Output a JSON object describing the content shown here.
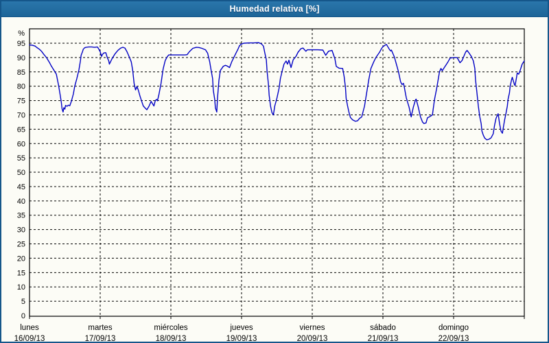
{
  "window": {
    "title": "Humedad relativa [%]"
  },
  "colors": {
    "titlebar": "#1d6598",
    "window_border": "#15568a",
    "background": "#fcfcf6",
    "line": "#0000c4",
    "grid": "#000000",
    "text": "#000000"
  },
  "chart_data": {
    "type": "line",
    "title": "Humedad relativa [%]",
    "ylabel_unit": "%",
    "ylim": [
      0,
      100
    ],
    "ytick_step": 5,
    "yticks": [
      95,
      90,
      85,
      80,
      75,
      70,
      65,
      60,
      55,
      50,
      45,
      40,
      35,
      30,
      25,
      20,
      15,
      10,
      5,
      0
    ],
    "grid": "dashed",
    "legend_position": "none",
    "x_axis": {
      "span_days": 7,
      "days": [
        {
          "name": "lunes",
          "date": "16/09/13"
        },
        {
          "name": "martes",
          "date": "17/09/13"
        },
        {
          "name": "miércoles",
          "date": "18/09/13"
        },
        {
          "name": "jueves",
          "date": "19/09/13"
        },
        {
          "name": "viernes",
          "date": "20/09/13"
        },
        {
          "name": "sábado",
          "date": "21/09/13"
        },
        {
          "name": "domingo",
          "date": "22/09/13"
        }
      ]
    },
    "series": [
      {
        "name": "Humedad relativa [%]",
        "color": "#0000c4",
        "points": [
          [
            0.0,
            94.4
          ],
          [
            0.04,
            94.3
          ],
          [
            0.08,
            94.0
          ],
          [
            0.1,
            93.6
          ],
          [
            0.14,
            92.9
          ],
          [
            0.17,
            92.2
          ],
          [
            0.2,
            91.2
          ],
          [
            0.24,
            90.0
          ],
          [
            0.28,
            88.4
          ],
          [
            0.31,
            87.0
          ],
          [
            0.34,
            85.8
          ],
          [
            0.38,
            84.2
          ],
          [
            0.41,
            80.5
          ],
          [
            0.43,
            77.5
          ],
          [
            0.45,
            74.5
          ],
          [
            0.46,
            72.2
          ],
          [
            0.475,
            71.0
          ],
          [
            0.485,
            72.5
          ],
          [
            0.5,
            72.0
          ],
          [
            0.51,
            73.3
          ],
          [
            0.53,
            73.0
          ],
          [
            0.55,
            73.4
          ],
          [
            0.57,
            73.2
          ],
          [
            0.59,
            74.6
          ],
          [
            0.62,
            77.3
          ],
          [
            0.64,
            80.0
          ],
          [
            0.67,
            82.7
          ],
          [
            0.7,
            85.8
          ],
          [
            0.72,
            88.9
          ],
          [
            0.73,
            90.8
          ],
          [
            0.75,
            92.1
          ],
          [
            0.76,
            92.9
          ],
          [
            0.78,
            93.4
          ],
          [
            0.8,
            93.6
          ],
          [
            0.84,
            93.7
          ],
          [
            0.88,
            93.7
          ],
          [
            0.92,
            93.6
          ],
          [
            0.96,
            93.7
          ],
          [
            0.98,
            93.0
          ],
          [
            1.0,
            92.0
          ],
          [
            1.02,
            90.4
          ],
          [
            1.03,
            91.0
          ],
          [
            1.05,
            91.6
          ],
          [
            1.08,
            91.7
          ],
          [
            1.1,
            90.0
          ],
          [
            1.12,
            88.9
          ],
          [
            1.13,
            87.7
          ],
          [
            1.17,
            89.7
          ],
          [
            1.21,
            91.3
          ],
          [
            1.25,
            92.5
          ],
          [
            1.29,
            93.3
          ],
          [
            1.32,
            93.6
          ],
          [
            1.35,
            93.3
          ],
          [
            1.38,
            92.0
          ],
          [
            1.41,
            90.3
          ],
          [
            1.44,
            88.5
          ],
          [
            1.46,
            85.5
          ],
          [
            1.48,
            81.0
          ],
          [
            1.5,
            78.7
          ],
          [
            1.52,
            79.9
          ],
          [
            1.54,
            78.6
          ],
          [
            1.56,
            76.8
          ],
          [
            1.59,
            74.5
          ],
          [
            1.61,
            73.1
          ],
          [
            1.64,
            72.3
          ],
          [
            1.66,
            71.8
          ],
          [
            1.69,
            73.0
          ],
          [
            1.72,
            74.7
          ],
          [
            1.76,
            73.1
          ],
          [
            1.78,
            75.0
          ],
          [
            1.8,
            75.4
          ],
          [
            1.81,
            74.9
          ],
          [
            1.83,
            77.0
          ],
          [
            1.86,
            80.9
          ],
          [
            1.89,
            86.0
          ],
          [
            1.92,
            89.0
          ],
          [
            1.95,
            90.3
          ],
          [
            1.97,
            90.9
          ],
          [
            2.05,
            90.9
          ],
          [
            2.12,
            90.9
          ],
          [
            2.2,
            90.9
          ],
          [
            2.23,
            91.0
          ],
          [
            2.26,
            92.0
          ],
          [
            2.31,
            93.2
          ],
          [
            2.36,
            93.6
          ],
          [
            2.4,
            93.5
          ],
          [
            2.44,
            93.2
          ],
          [
            2.49,
            92.7
          ],
          [
            2.52,
            91.5
          ],
          [
            2.55,
            88.5
          ],
          [
            2.57,
            85.5
          ],
          [
            2.59,
            82.7
          ],
          [
            2.6,
            78.6
          ],
          [
            2.62,
            75.4
          ],
          [
            2.63,
            72.4
          ],
          [
            2.65,
            71.0
          ],
          [
            2.66,
            76.0
          ],
          [
            2.68,
            82.0
          ],
          [
            2.7,
            85.5
          ],
          [
            2.72,
            86.2
          ],
          [
            2.74,
            86.9
          ],
          [
            2.77,
            87.3
          ],
          [
            2.8,
            87.0
          ],
          [
            2.83,
            86.5
          ],
          [
            2.86,
            88.5
          ],
          [
            2.89,
            90.0
          ],
          [
            2.92,
            91.5
          ],
          [
            2.95,
            93.0
          ],
          [
            2.97,
            94.1
          ],
          [
            2.99,
            94.6
          ],
          [
            3.03,
            95.0
          ],
          [
            3.1,
            95.1
          ],
          [
            3.17,
            95.1
          ],
          [
            3.24,
            95.2
          ],
          [
            3.28,
            94.8
          ],
          [
            3.31,
            94.0
          ],
          [
            3.33,
            91.5
          ],
          [
            3.35,
            89.2
          ],
          [
            3.36,
            85.4
          ],
          [
            3.38,
            80.8
          ],
          [
            3.39,
            76.9
          ],
          [
            3.41,
            73.1
          ],
          [
            3.43,
            70.8
          ],
          [
            3.45,
            70.0
          ],
          [
            3.47,
            73.1
          ],
          [
            3.5,
            75.8
          ],
          [
            3.53,
            79.2
          ],
          [
            3.55,
            82.7
          ],
          [
            3.58,
            85.8
          ],
          [
            3.6,
            87.7
          ],
          [
            3.63,
            88.8
          ],
          [
            3.65,
            87.7
          ],
          [
            3.67,
            89.1
          ],
          [
            3.7,
            86.5
          ],
          [
            3.73,
            89.2
          ],
          [
            3.77,
            90.4
          ],
          [
            3.8,
            91.9
          ],
          [
            3.84,
            93.1
          ],
          [
            3.87,
            93.3
          ],
          [
            3.91,
            92.2
          ],
          [
            3.93,
            92.7
          ],
          [
            3.97,
            92.7
          ],
          [
            4.02,
            92.7
          ],
          [
            4.08,
            92.7
          ],
          [
            4.15,
            92.6
          ],
          [
            4.19,
            90.8
          ],
          [
            4.23,
            92.2
          ],
          [
            4.26,
            92.4
          ],
          [
            4.28,
            92.5
          ],
          [
            4.32,
            89.6
          ],
          [
            4.34,
            86.9
          ],
          [
            4.38,
            86.3
          ],
          [
            4.43,
            86.2
          ],
          [
            4.45,
            83.5
          ],
          [
            4.47,
            79.6
          ],
          [
            4.48,
            75.8
          ],
          [
            4.5,
            73.1
          ],
          [
            4.52,
            70.8
          ],
          [
            4.54,
            69.1
          ],
          [
            4.57,
            68.3
          ],
          [
            4.61,
            67.8
          ],
          [
            4.64,
            67.9
          ],
          [
            4.67,
            68.8
          ],
          [
            4.7,
            69.3
          ],
          [
            4.74,
            73.1
          ],
          [
            4.77,
            77.7
          ],
          [
            4.8,
            82.3
          ],
          [
            4.83,
            86.2
          ],
          [
            4.87,
            88.5
          ],
          [
            4.9,
            90.0
          ],
          [
            4.95,
            91.8
          ],
          [
            4.98,
            93.1
          ],
          [
            5.0,
            93.8
          ],
          [
            5.03,
            94.3
          ],
          [
            5.05,
            94.6
          ],
          [
            5.09,
            92.9
          ],
          [
            5.11,
            92.3
          ],
          [
            5.12,
            92.6
          ],
          [
            5.16,
            90.3
          ],
          [
            5.19,
            87.7
          ],
          [
            5.22,
            85.0
          ],
          [
            5.25,
            81.5
          ],
          [
            5.27,
            80.6
          ],
          [
            5.29,
            81.0
          ],
          [
            5.3,
            80.0
          ],
          [
            5.33,
            76.0
          ],
          [
            5.37,
            72.7
          ],
          [
            5.39,
            70.4
          ],
          [
            5.4,
            69.3
          ],
          [
            5.43,
            72.7
          ],
          [
            5.46,
            75.2
          ],
          [
            5.47,
            75.5
          ],
          [
            5.5,
            72.7
          ],
          [
            5.53,
            69.4
          ],
          [
            5.56,
            67.5
          ],
          [
            5.58,
            67.0
          ],
          [
            5.61,
            67.2
          ],
          [
            5.63,
            69.0
          ],
          [
            5.67,
            69.5
          ],
          [
            5.7,
            70.0
          ],
          [
            5.73,
            75.4
          ],
          [
            5.76,
            79.2
          ],
          [
            5.78,
            82.0
          ],
          [
            5.8,
            85.0
          ],
          [
            5.82,
            86.2
          ],
          [
            5.84,
            85.4
          ],
          [
            5.86,
            86.2
          ],
          [
            5.9,
            87.7
          ],
          [
            5.92,
            88.5
          ],
          [
            5.95,
            89.8
          ],
          [
            6.0,
            90.0
          ],
          [
            6.05,
            90.0
          ],
          [
            6.09,
            88.2
          ],
          [
            6.12,
            89.0
          ],
          [
            6.15,
            90.8
          ],
          [
            6.17,
            91.9
          ],
          [
            6.19,
            92.5
          ],
          [
            6.22,
            91.5
          ],
          [
            6.25,
            90.4
          ],
          [
            6.28,
            88.8
          ],
          [
            6.3,
            86.2
          ],
          [
            6.31,
            82.3
          ],
          [
            6.33,
            77.7
          ],
          [
            6.35,
            73.1
          ],
          [
            6.37,
            69.4
          ],
          [
            6.39,
            66.9
          ],
          [
            6.4,
            64.4
          ],
          [
            6.42,
            62.9
          ],
          [
            6.44,
            61.9
          ],
          [
            6.47,
            61.3
          ],
          [
            6.5,
            61.5
          ],
          [
            6.53,
            62.0
          ],
          [
            6.56,
            63.4
          ],
          [
            6.58,
            66.4
          ],
          [
            6.6,
            68.8
          ],
          [
            6.62,
            69.9
          ],
          [
            6.63,
            70.4
          ],
          [
            6.65,
            66.9
          ],
          [
            6.67,
            64.4
          ],
          [
            6.69,
            63.6
          ],
          [
            6.72,
            68.1
          ],
          [
            6.74,
            70.4
          ],
          [
            6.76,
            73.1
          ],
          [
            6.77,
            75.4
          ],
          [
            6.79,
            77.7
          ],
          [
            6.8,
            80.0
          ],
          [
            6.82,
            82.3
          ],
          [
            6.83,
            83.1
          ],
          [
            6.86,
            80.6
          ],
          [
            6.87,
            80.2
          ],
          [
            6.89,
            83.1
          ],
          [
            6.9,
            84.6
          ],
          [
            6.92,
            84.2
          ],
          [
            6.94,
            85.4
          ],
          [
            6.97,
            87.7
          ],
          [
            6.99,
            88.5
          ],
          [
            7.0,
            88.8
          ]
        ]
      }
    ]
  }
}
